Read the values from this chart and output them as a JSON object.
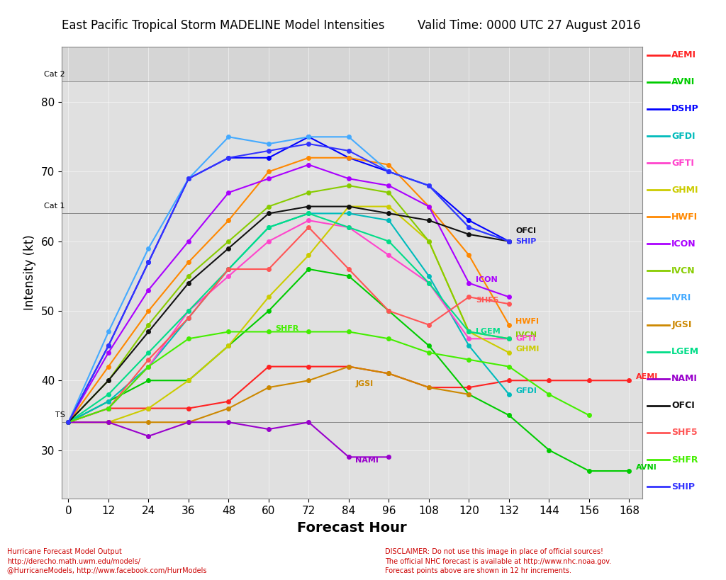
{
  "title_left": "East Pacific Tropical Storm MADELINE Model Intensities",
  "title_right": "Valid Time: 0000 UTC 27 August 2016",
  "xlabel": "Forecast Hour",
  "ylabel": "Intensity (kt)",
  "x_ticks": [
    0,
    12,
    24,
    36,
    48,
    60,
    72,
    84,
    96,
    108,
    120,
    132,
    144,
    156,
    168
  ],
  "y_ticks": [
    30,
    40,
    50,
    60,
    70,
    80
  ],
  "ylim": [
    23,
    88
  ],
  "xlim": [
    -2,
    172
  ],
  "cat2_y": 83,
  "cat1_y": 64,
  "ts_y": 34,
  "footer_left": "Hurricane Forecast Model Output\nhttp://derecho.math.uwm.edu/models/\n@HurricaneModels, http://www.facebook.com/HurrModels",
  "footer_right": "DISCLAIMER: Do not use this image in place of official sources!\nThe official NHC forecast is available at http://www.nhc.noaa.gov.\nForecast points above are shown in 12 hr increments.",
  "series": {
    "AEMI": {
      "color": "#ff2222",
      "data": [
        [
          0,
          34
        ],
        [
          12,
          36
        ],
        [
          24,
          36
        ],
        [
          36,
          36
        ],
        [
          48,
          37
        ],
        [
          60,
          42
        ],
        [
          72,
          42
        ],
        [
          84,
          42
        ],
        [
          96,
          41
        ],
        [
          108,
          39
        ],
        [
          120,
          39
        ],
        [
          132,
          40
        ],
        [
          144,
          40
        ],
        [
          156,
          40
        ],
        [
          168,
          40
        ]
      ]
    },
    "AVNI": {
      "color": "#00cc00",
      "data": [
        [
          0,
          34
        ],
        [
          12,
          37
        ],
        [
          24,
          40
        ],
        [
          36,
          40
        ],
        [
          48,
          45
        ],
        [
          60,
          50
        ],
        [
          72,
          56
        ],
        [
          84,
          55
        ],
        [
          96,
          50
        ],
        [
          108,
          45
        ],
        [
          120,
          38
        ],
        [
          132,
          35
        ],
        [
          144,
          30
        ],
        [
          156,
          27
        ],
        [
          168,
          27
        ]
      ]
    },
    "DSHP": {
      "color": "#0000ff",
      "data": [
        [
          0,
          34
        ],
        [
          12,
          45
        ],
        [
          24,
          57
        ],
        [
          36,
          69
        ],
        [
          48,
          72
        ],
        [
          60,
          72
        ],
        [
          72,
          75
        ],
        [
          84,
          72
        ],
        [
          96,
          70
        ],
        [
          108,
          68
        ],
        [
          120,
          63
        ],
        [
          132,
          60
        ]
      ]
    },
    "GFDI": {
      "color": "#00bbbb",
      "data": [
        [
          0,
          34
        ],
        [
          12,
          37
        ],
        [
          24,
          42
        ],
        [
          36,
          49
        ],
        [
          48,
          56
        ],
        [
          60,
          62
        ],
        [
          72,
          64
        ],
        [
          84,
          64
        ],
        [
          96,
          63
        ],
        [
          108,
          55
        ],
        [
          120,
          45
        ],
        [
          132,
          38
        ]
      ]
    },
    "GFTI": {
      "color": "#ff44cc",
      "data": [
        [
          0,
          34
        ],
        [
          12,
          36
        ],
        [
          24,
          42
        ],
        [
          36,
          50
        ],
        [
          48,
          55
        ],
        [
          60,
          60
        ],
        [
          72,
          63
        ],
        [
          84,
          62
        ],
        [
          96,
          58
        ],
        [
          108,
          54
        ],
        [
          120,
          46
        ],
        [
          132,
          46
        ]
      ]
    },
    "GHMI": {
      "color": "#cccc00",
      "data": [
        [
          0,
          34
        ],
        [
          12,
          34
        ],
        [
          24,
          36
        ],
        [
          36,
          40
        ],
        [
          48,
          45
        ],
        [
          60,
          52
        ],
        [
          72,
          58
        ],
        [
          84,
          65
        ],
        [
          96,
          65
        ],
        [
          108,
          60
        ],
        [
          120,
          47
        ],
        [
          132,
          44
        ]
      ]
    },
    "HWFI": {
      "color": "#ff8800",
      "data": [
        [
          0,
          34
        ],
        [
          12,
          42
        ],
        [
          24,
          50
        ],
        [
          36,
          57
        ],
        [
          48,
          63
        ],
        [
          60,
          70
        ],
        [
          72,
          72
        ],
        [
          84,
          72
        ],
        [
          96,
          71
        ],
        [
          108,
          65
        ],
        [
          120,
          58
        ],
        [
          132,
          48
        ]
      ]
    },
    "ICON": {
      "color": "#aa00ff",
      "data": [
        [
          0,
          34
        ],
        [
          12,
          44
        ],
        [
          24,
          53
        ],
        [
          36,
          60
        ],
        [
          48,
          67
        ],
        [
          60,
          69
        ],
        [
          72,
          71
        ],
        [
          84,
          69
        ],
        [
          96,
          68
        ],
        [
          108,
          65
        ],
        [
          120,
          54
        ],
        [
          132,
          52
        ]
      ]
    },
    "IVCN": {
      "color": "#88cc00",
      "data": [
        [
          0,
          34
        ],
        [
          12,
          40
        ],
        [
          24,
          48
        ],
        [
          36,
          55
        ],
        [
          48,
          60
        ],
        [
          60,
          65
        ],
        [
          72,
          67
        ],
        [
          84,
          68
        ],
        [
          96,
          67
        ],
        [
          108,
          60
        ],
        [
          120,
          47
        ],
        [
          132,
          46
        ]
      ]
    },
    "IVRI": {
      "color": "#44aaff",
      "data": [
        [
          0,
          34
        ],
        [
          12,
          47
        ],
        [
          24,
          59
        ],
        [
          36,
          69
        ],
        [
          48,
          75
        ],
        [
          60,
          74
        ],
        [
          72,
          75
        ],
        [
          84,
          75
        ],
        [
          96,
          70
        ],
        [
          108,
          68
        ],
        [
          120,
          62
        ],
        [
          132,
          60
        ]
      ]
    },
    "JGSI": {
      "color": "#cc8800",
      "data": [
        [
          0,
          34
        ],
        [
          12,
          34
        ],
        [
          24,
          34
        ],
        [
          36,
          34
        ],
        [
          48,
          36
        ],
        [
          60,
          39
        ],
        [
          72,
          40
        ],
        [
          84,
          42
        ],
        [
          96,
          41
        ],
        [
          108,
          39
        ],
        [
          120,
          38
        ]
      ]
    },
    "LGEM": {
      "color": "#00dd88",
      "data": [
        [
          0,
          34
        ],
        [
          12,
          38
        ],
        [
          24,
          44
        ],
        [
          36,
          50
        ],
        [
          48,
          56
        ],
        [
          60,
          62
        ],
        [
          72,
          64
        ],
        [
          84,
          62
        ],
        [
          96,
          60
        ],
        [
          108,
          54
        ],
        [
          120,
          47
        ],
        [
          132,
          46
        ]
      ]
    },
    "NAMI": {
      "color": "#9900cc",
      "data": [
        [
          0,
          34
        ],
        [
          12,
          34
        ],
        [
          24,
          32
        ],
        [
          36,
          34
        ],
        [
          48,
          34
        ],
        [
          60,
          33
        ],
        [
          72,
          34
        ],
        [
          84,
          29
        ],
        [
          96,
          29
        ]
      ]
    },
    "OFCI": {
      "color": "#111111",
      "data": [
        [
          0,
          34
        ],
        [
          12,
          40
        ],
        [
          24,
          47
        ],
        [
          36,
          54
        ],
        [
          48,
          59
        ],
        [
          60,
          64
        ],
        [
          72,
          65
        ],
        [
          84,
          65
        ],
        [
          96,
          64
        ],
        [
          108,
          63
        ],
        [
          120,
          61
        ],
        [
          132,
          60
        ]
      ]
    },
    "SHF5": {
      "color": "#ff5555",
      "data": [
        [
          0,
          34
        ],
        [
          12,
          36
        ],
        [
          24,
          43
        ],
        [
          36,
          49
        ],
        [
          48,
          56
        ],
        [
          60,
          56
        ],
        [
          72,
          62
        ],
        [
          84,
          56
        ],
        [
          96,
          50
        ],
        [
          108,
          48
        ],
        [
          120,
          52
        ],
        [
          132,
          51
        ]
      ]
    },
    "SHFR": {
      "color": "#44ee00",
      "data": [
        [
          0,
          34
        ],
        [
          12,
          36
        ],
        [
          24,
          42
        ],
        [
          36,
          46
        ],
        [
          48,
          47
        ],
        [
          60,
          47
        ],
        [
          72,
          47
        ],
        [
          84,
          47
        ],
        [
          96,
          46
        ],
        [
          108,
          44
        ],
        [
          120,
          43
        ],
        [
          132,
          42
        ],
        [
          144,
          38
        ],
        [
          156,
          35
        ]
      ]
    },
    "SHIP": {
      "color": "#3333ff",
      "data": [
        [
          0,
          34
        ],
        [
          12,
          45
        ],
        [
          24,
          57
        ],
        [
          36,
          69
        ],
        [
          48,
          72
        ],
        [
          60,
          73
        ],
        [
          72,
          74
        ],
        [
          84,
          73
        ],
        [
          96,
          70
        ],
        [
          108,
          68
        ],
        [
          120,
          62
        ],
        [
          132,
          60
        ]
      ]
    }
  },
  "legend_order": [
    "AEMI",
    "AVNI",
    "DSHP",
    "GFDI",
    "GFTI",
    "GHMI",
    "HWFI",
    "ICON",
    "IVCN",
    "IVRI",
    "JGSI",
    "LGEM",
    "NAMI",
    "OFCI",
    "SHF5",
    "SHFR",
    "SHIP"
  ]
}
